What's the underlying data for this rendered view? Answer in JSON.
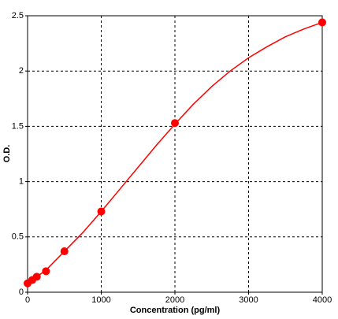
{
  "chart_data": {
    "type": "scatter",
    "xlabel": "Concentration (pg/ml)",
    "ylabel": "O.D.",
    "xlim": [
      0,
      4000
    ],
    "xticks": [
      0,
      1000,
      2000,
      3000,
      4000
    ],
    "ylim": [
      0,
      2.5
    ],
    "yticks": [
      0,
      0.5,
      1,
      1.5,
      2,
      2.5
    ],
    "grid": true,
    "series": [
      {
        "mode": "line",
        "color": "#ff0000",
        "x": [
          0,
          250,
          500,
          750,
          1000,
          1250,
          1500,
          1750,
          2000,
          2250,
          2500,
          2750,
          3000,
          3250,
          3500,
          3750,
          4000
        ],
        "values": [
          0.08,
          0.2,
          0.37,
          0.54,
          0.73,
          0.93,
          1.13,
          1.33,
          1.52,
          1.7,
          1.86,
          2.0,
          2.12,
          2.22,
          2.31,
          2.38,
          2.44
        ]
      },
      {
        "mode": "markers",
        "color": "#ff0000",
        "x": [
          0,
          62.5,
          125,
          250,
          500,
          1000,
          2000,
          4000
        ],
        "values": [
          0.08,
          0.11,
          0.14,
          0.19,
          0.37,
          0.73,
          1.53,
          2.44
        ]
      }
    ]
  }
}
